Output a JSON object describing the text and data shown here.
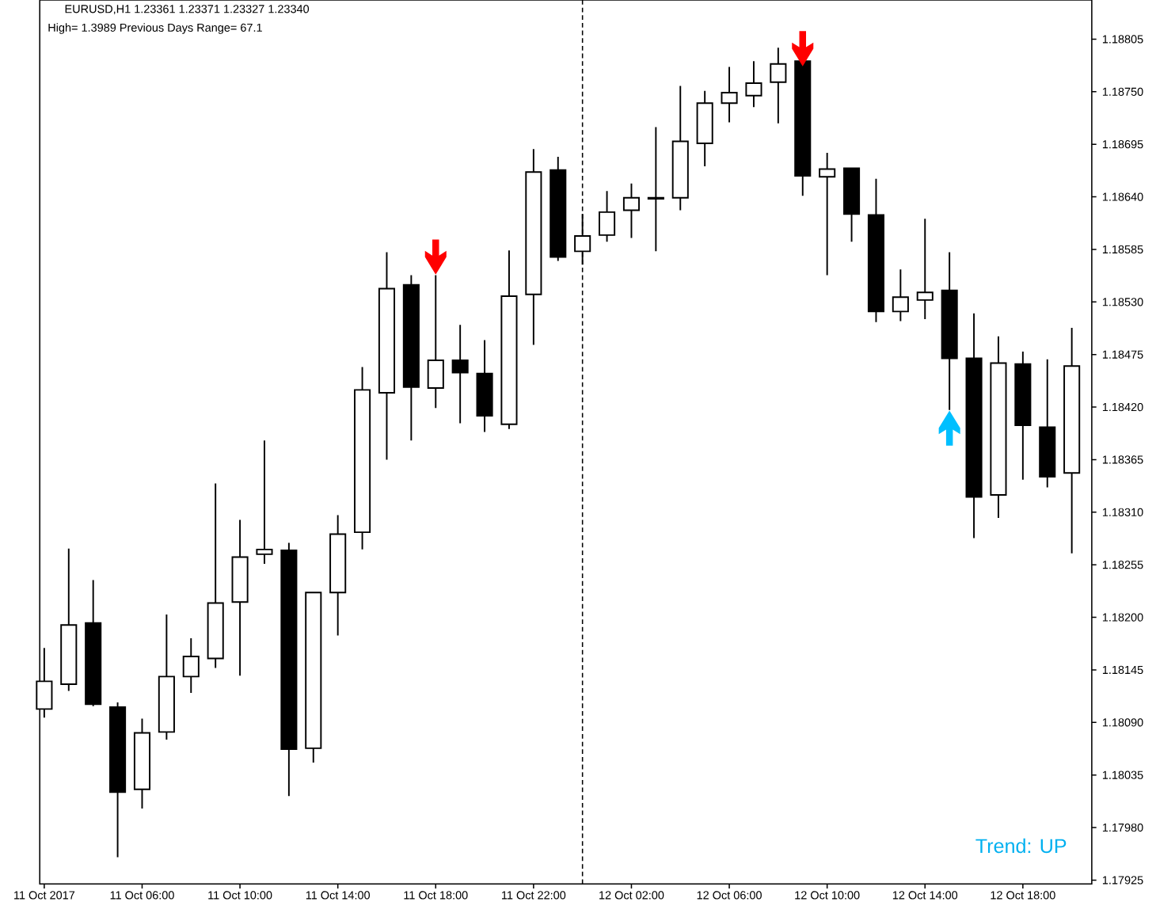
{
  "chart_data": {
    "type": "candlestick",
    "title": "EURUSD,H1  1.23361 1.23371 1.23327 1.23340",
    "subtitle": "High= 1.3989    Previous Days Range= 67.1",
    "annotations": [
      "Trend: UP"
    ],
    "color": "#000000",
    "x": [
      "2017-10-11T02:00",
      "2017-10-11T03:00",
      "2017-10-11T04:00",
      "2017-10-11T05:00",
      "2017-10-11T06:00",
      "2017-10-11T07:00",
      "2017-10-11T08:00",
      "2017-10-11T09:00",
      "2017-10-11T10:00",
      "2017-10-11T11:00",
      "2017-10-11T12:00",
      "2017-10-11T13:00",
      "2017-10-11T14:00",
      "2017-10-11T15:00",
      "2017-10-11T16:00",
      "2017-10-11T17:00",
      "2017-10-11T18:00",
      "2017-10-11T19:00",
      "2017-10-11T20:00",
      "2017-10-11T21:00",
      "2017-10-11T22:00",
      "2017-10-11T23:00",
      "2017-10-12T00:00",
      "2017-10-12T01:00",
      "2017-10-12T02:00",
      "2017-10-12T03:00",
      "2017-10-12T04:00",
      "2017-10-12T05:00",
      "2017-10-12T06:00",
      "2017-10-12T07:00",
      "2017-10-12T08:00",
      "2017-10-12T09:00",
      "2017-10-12T10:00",
      "2017-10-12T11:00",
      "2017-10-12T12:00",
      "2017-10-12T13:00",
      "2017-10-12T14:00",
      "2017-10-12T15:00",
      "2017-10-12T16:00",
      "2017-10-12T17:00",
      "2017-10-12T18:00",
      "2017-10-12T19:00",
      "2017-10-12T20:00"
    ],
    "ohlc": [
      [
        1.18104,
        1.18168,
        1.18095,
        1.18133
      ],
      [
        1.1813,
        1.18272,
        1.18123,
        1.18192
      ],
      [
        1.18194,
        1.18239,
        1.18107,
        1.18109
      ],
      [
        1.18106,
        1.18111,
        1.17949,
        1.18017
      ],
      [
        1.1802,
        1.18094,
        1.18,
        1.18079
      ],
      [
        1.1808,
        1.18203,
        1.18072,
        1.18138
      ],
      [
        1.18138,
        1.18178,
        1.18121,
        1.18159
      ],
      [
        1.18157,
        1.1834,
        1.18147,
        1.18215
      ],
      [
        1.18216,
        1.18302,
        1.18139,
        1.18263
      ],
      [
        1.18266,
        1.18385,
        1.18256,
        1.18271
      ],
      [
        1.1827,
        1.18278,
        1.18013,
        1.18062
      ],
      [
        1.18063,
        1.18226,
        1.18048,
        1.18226
      ],
      [
        1.18226,
        1.18307,
        1.18181,
        1.18287
      ],
      [
        1.18289,
        1.18462,
        1.18271,
        1.18438
      ],
      [
        1.18435,
        1.18582,
        1.18365,
        1.18544
      ],
      [
        1.18548,
        1.18558,
        1.18385,
        1.18441
      ],
      [
        1.1844,
        1.18558,
        1.18419,
        1.18469
      ],
      [
        1.18469,
        1.18506,
        1.18403,
        1.18456
      ],
      [
        1.18455,
        1.1849,
        1.18394,
        1.18411
      ],
      [
        1.18402,
        1.18584,
        1.18397,
        1.18536
      ],
      [
        1.18538,
        1.1869,
        1.18485,
        1.18666
      ],
      [
        1.18668,
        1.18682,
        1.18573,
        1.18577
      ],
      [
        1.18583,
        1.18622,
        1.18569,
        1.18599
      ],
      [
        1.186,
        1.18646,
        1.18593,
        1.18624
      ],
      [
        1.18626,
        1.18654,
        1.18597,
        1.18639
      ],
      [
        1.18638,
        1.18713,
        1.18583,
        1.18639
      ],
      [
        1.18639,
        1.18756,
        1.18626,
        1.18698
      ],
      [
        1.18696,
        1.18751,
        1.18672,
        1.18738
      ],
      [
        1.18738,
        1.18776,
        1.18718,
        1.18749
      ],
      [
        1.18746,
        1.18782,
        1.18734,
        1.18759
      ],
      [
        1.1876,
        1.18796,
        1.18717,
        1.18779
      ],
      [
        1.18782,
        1.18785,
        1.18641,
        1.18662
      ],
      [
        1.18661,
        1.18686,
        1.18558,
        1.18669
      ],
      [
        1.1867,
        1.1867,
        1.18593,
        1.18622
      ],
      [
        1.18621,
        1.18659,
        1.18509,
        1.1852
      ],
      [
        1.1852,
        1.18564,
        1.1851,
        1.18535
      ],
      [
        1.18532,
        1.18617,
        1.18512,
        1.1854
      ],
      [
        1.18542,
        1.18582,
        1.18417,
        1.18471
      ],
      [
        1.18471,
        1.18518,
        1.18283,
        1.18326
      ],
      [
        1.18328,
        1.18494,
        1.18304,
        1.18466
      ],
      [
        1.18465,
        1.18478,
        1.18344,
        1.18401
      ],
      [
        1.18399,
        1.1847,
        1.18336,
        1.18347
      ],
      [
        1.18351,
        1.18503,
        1.18267,
        1.18463
      ]
    ],
    "series": [
      {
        "type": "scatter",
        "color": "#ff0000",
        "x": [
          "2017-10-11T18:00",
          "2017-10-12T09:00"
        ],
        "values": [
          1.18577,
          1.18795
        ]
      },
      {
        "type": "scatter",
        "color": "#00bfff",
        "x": [
          "2017-10-12T15:00"
        ],
        "values": [
          1.18398
        ]
      }
    ],
    "ref_lines": [
      {
        "axis": "x",
        "value": "2017-10-12T00:00",
        "line_style": "dashed",
        "color": "#000000"
      }
    ],
    "xlim": [
      "2017-10-11T01:49",
      "2017-10-12T20:49"
    ],
    "xticks": [
      {
        "value": "2017-10-11T02:00",
        "label": "11 Oct 2017"
      },
      {
        "value": "2017-10-11T06:00",
        "label": "11 Oct 06:00"
      },
      {
        "value": "2017-10-11T10:00",
        "label": "11 Oct 10:00"
      },
      {
        "value": "2017-10-11T14:00",
        "label": "11 Oct 14:00"
      },
      {
        "value": "2017-10-11T18:00",
        "label": "11 Oct 18:00"
      },
      {
        "value": "2017-10-11T22:00",
        "label": "11 Oct 22:00"
      },
      {
        "value": "2017-10-12T02:00",
        "label": "12 Oct 02:00"
      },
      {
        "value": "2017-10-12T06:00",
        "label": "12 Oct 06:00"
      },
      {
        "value": "2017-10-12T10:00",
        "label": "12 Oct 10:00"
      },
      {
        "value": "2017-10-12T14:00",
        "label": "12 Oct 14:00"
      },
      {
        "value": "2017-10-12T18:00",
        "label": "12 Oct 18:00"
      }
    ],
    "ylim": [
      1.17921,
      1.18846
    ],
    "yticks": [
      1.17925,
      {
        "value": 1.1798,
        "label": "1.17980"
      },
      1.18035,
      {
        "value": 1.1809,
        "label": "1.18090"
      },
      1.18145,
      {
        "value": 1.182,
        "label": "1.18200"
      },
      1.18255,
      {
        "value": 1.1831,
        "label": "1.18310"
      },
      1.18365,
      {
        "value": 1.1842,
        "label": "1.18420"
      },
      1.18475,
      {
        "value": 1.1853,
        "label": "1.18530"
      },
      1.18585,
      {
        "value": 1.1864,
        "label": "1.18640"
      },
      1.18695,
      {
        "value": 1.1875,
        "label": "1.18750"
      },
      1.18805
    ]
  }
}
